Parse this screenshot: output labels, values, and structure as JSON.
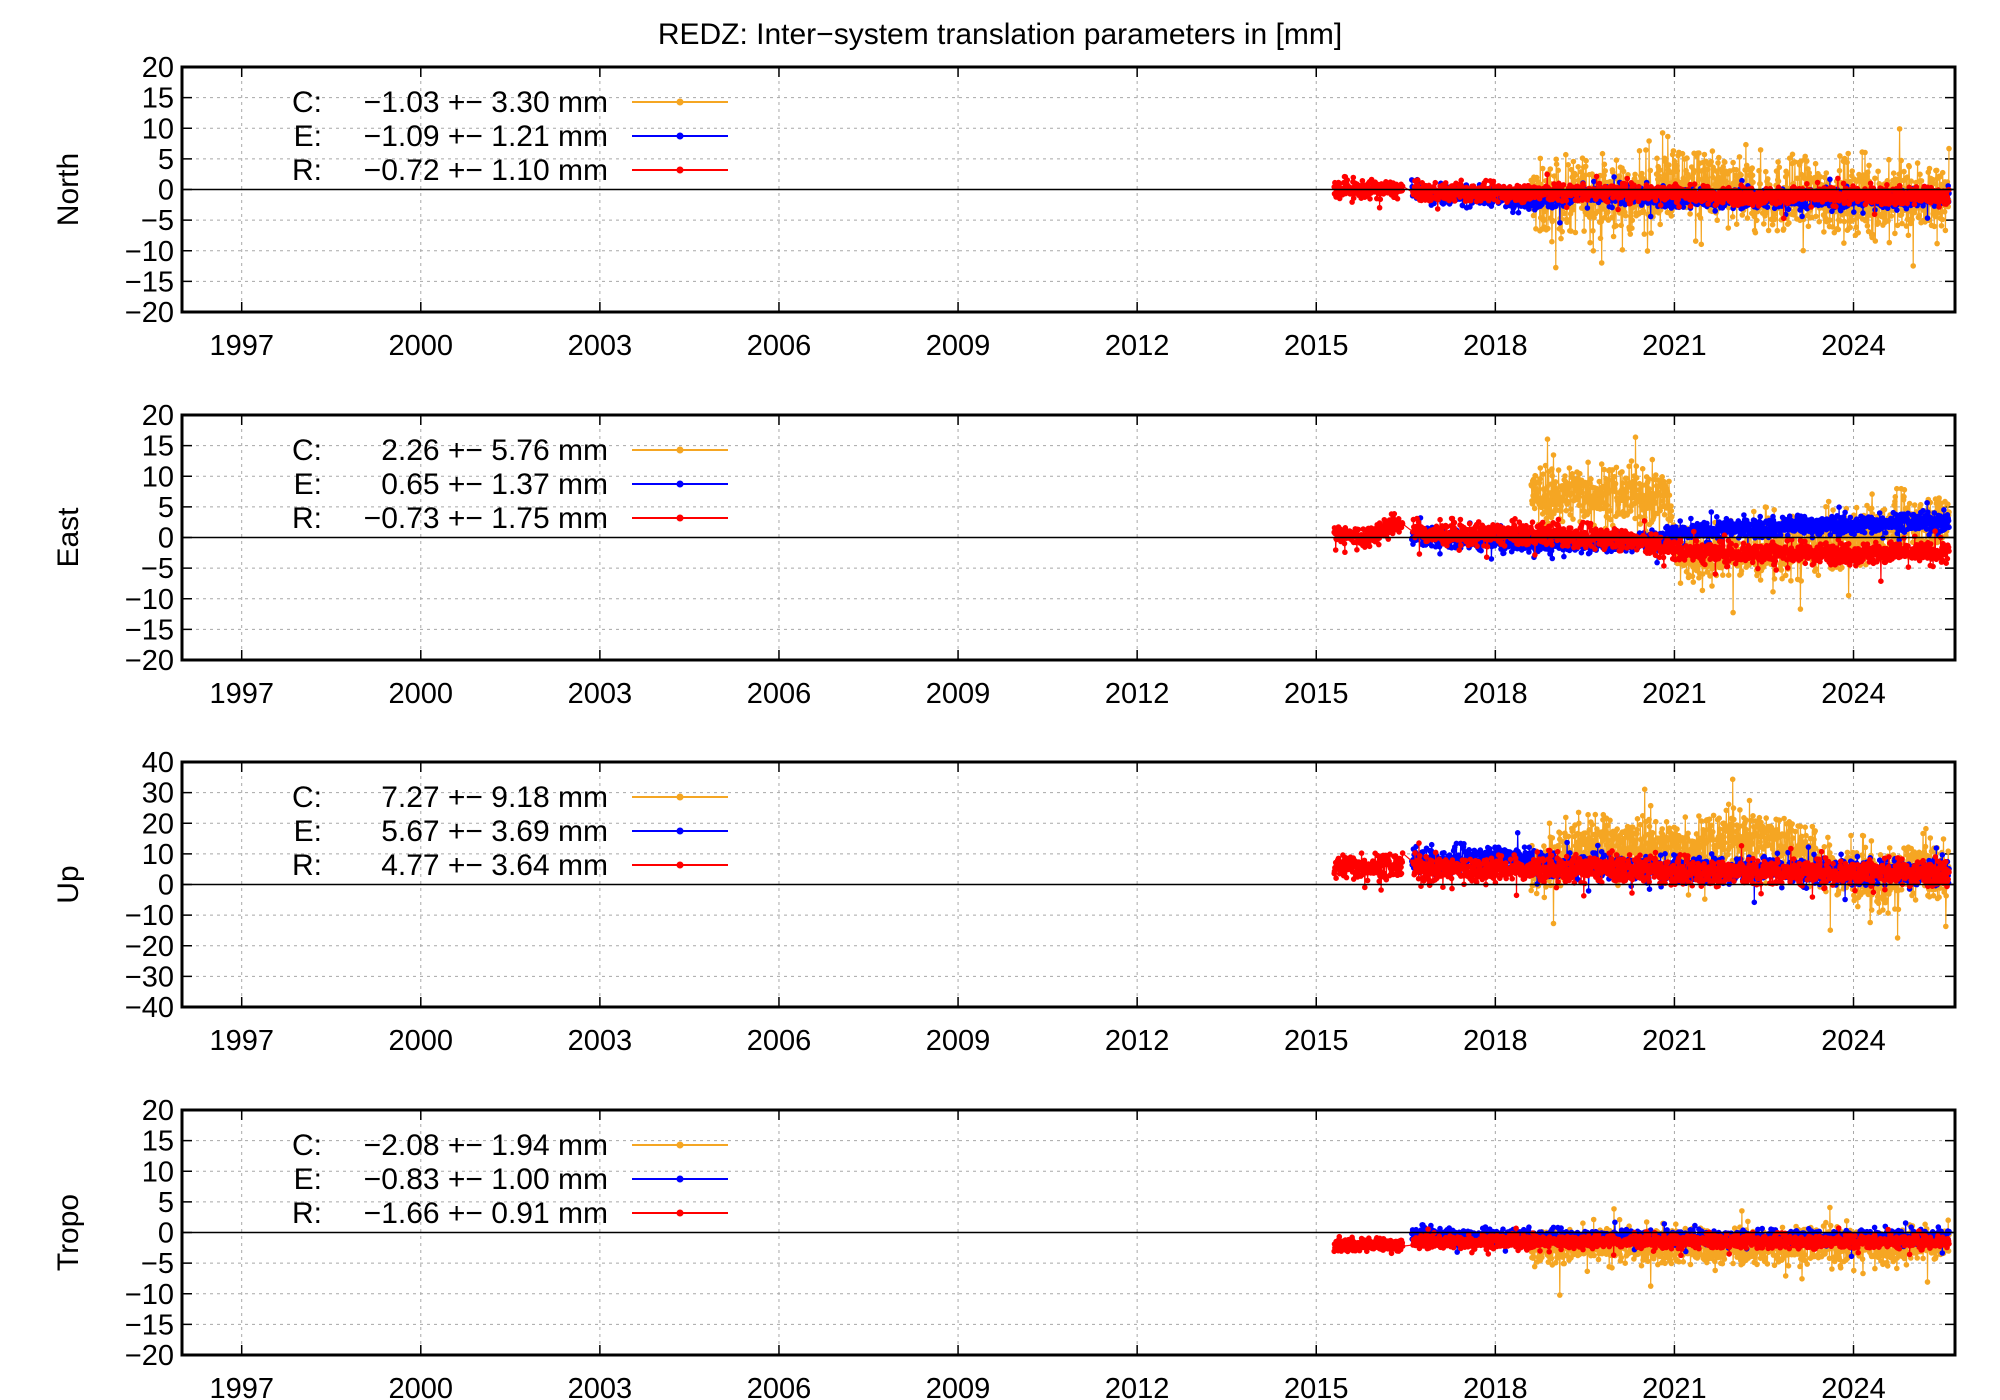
{
  "chart_data": {
    "type": "line",
    "title": "REDZ: Inter−system translation parameters in [mm]",
    "x_ticks": [
      "1997",
      "2000",
      "2003",
      "2006",
      "2009",
      "2012",
      "2015",
      "2018",
      "2021",
      "2024"
    ],
    "x_range": [
      1996,
      2025.7
    ],
    "grid": true,
    "legend_position": "top-left",
    "series_colors": {
      "C": "#f5a623",
      "E": "#0000ff",
      "R": "#ff0000"
    },
    "panels": [
      {
        "ylabel": "North",
        "ylim": [
          -20,
          20
        ],
        "yticks": [
          "20",
          "15",
          "10",
          "5",
          "0",
          "−5",
          "−10",
          "−15",
          "−20"
        ],
        "legend": [
          {
            "key": "C",
            "label": "C:",
            "stat": "−1.03 +− 3.30 mm"
          },
          {
            "key": "E",
            "label": "E:",
            "stat": "−1.09 +− 1.21 mm"
          },
          {
            "key": "R",
            "label": "R:",
            "stat": "−0.72 +− 1.10 mm"
          }
        ],
        "series": [
          {
            "name": "C",
            "start": 2018.6,
            "x": [
              2018.6,
              2019.0,
              2019.5,
              2020.0,
              2020.5,
              2021.0,
              2021.5,
              2022.0,
              2022.5,
              2023.0,
              2023.5,
              2024.0,
              2024.5,
              2025.0,
              2025.6
            ],
            "values": [
              -1.5,
              -2.0,
              -0.5,
              -1.0,
              -1.5,
              1.0,
              0.5,
              -0.5,
              -1.0,
              -1.5,
              -1.0,
              -1.5,
              -2.0,
              -1.5,
              -1.0
            ],
            "spread": 5.0
          },
          {
            "name": "E",
            "start": 2016.6,
            "x": [
              2016.6,
              2017.0,
              2017.5,
              2018.0,
              2018.5,
              2019.0,
              2019.5,
              2020.0,
              2020.5,
              2021.0,
              2021.5,
              2022.0,
              2022.5,
              2023.0,
              2023.5,
              2024.0,
              2024.5,
              2025.0,
              2025.6
            ],
            "values": [
              0.5,
              -1.0,
              -1.0,
              -1.0,
              -1.5,
              -1.5,
              -1.0,
              -1.0,
              -1.0,
              -1.5,
              -1.5,
              -1.5,
              -1.5,
              -1.5,
              -1.5,
              -1.5,
              -1.5,
              -1.5,
              -1.5
            ],
            "spread": 1.3
          },
          {
            "name": "R",
            "start": 2015.3,
            "x": [
              2015.3,
              2015.8,
              2016.3,
              2016.5,
              2016.7,
              2017.0,
              2017.5,
              2018.0,
              2018.5,
              2019.0,
              2019.5,
              2020.0,
              2020.5,
              2021.0,
              2021.5,
              2022.0,
              2022.5,
              2023.0,
              2023.5,
              2024.0,
              2024.5,
              2025.0,
              2025.6
            ],
            "values": [
              0.0,
              0.0,
              0.0,
              0.0,
              -0.5,
              -0.5,
              -0.5,
              -0.5,
              -0.5,
              -0.5,
              -0.5,
              -0.5,
              -0.5,
              -0.5,
              -1.0,
              -1.0,
              -1.0,
              -1.0,
              -1.0,
              -1.0,
              -1.0,
              -1.0,
              -1.0
            ],
            "spread": 1.2
          }
        ]
      },
      {
        "ylabel": "East",
        "ylim": [
          -20,
          20
        ],
        "yticks": [
          "20",
          "15",
          "10",
          "5",
          "0",
          "−5",
          "−10",
          "−15",
          "−20"
        ],
        "legend": [
          {
            "key": "C",
            "label": "C:",
            "stat": "2.26 +− 5.76 mm"
          },
          {
            "key": "E",
            "label": "E:",
            "stat": "0.65 +− 1.37 mm"
          },
          {
            "key": "R",
            "label": "R:",
            "stat": "−0.73 +− 1.75 mm"
          }
        ],
        "series": [
          {
            "name": "C",
            "start": 2018.6,
            "x": [
              2018.6,
              2019.0,
              2019.5,
              2020.0,
              2020.5,
              2020.9,
              2021.0,
              2021.5,
              2022.0,
              2022.5,
              2023.0,
              2023.5,
              2024.0,
              2024.5,
              2025.0,
              2025.6
            ],
            "values": [
              7.0,
              7.0,
              7.5,
              7.0,
              6.5,
              6.5,
              -1.5,
              -3.0,
              -2.5,
              -2.0,
              -2.0,
              -1.0,
              -0.5,
              1.0,
              2.0,
              3.0
            ],
            "spread": 4.0
          },
          {
            "name": "E",
            "start": 2016.6,
            "x": [
              2016.6,
              2017.0,
              2017.5,
              2018.0,
              2018.5,
              2019.0,
              2019.5,
              2020.0,
              2020.5,
              2021.0,
              2021.5,
              2022.0,
              2022.5,
              2023.0,
              2023.5,
              2024.0,
              2024.5,
              2025.0,
              2025.6
            ],
            "values": [
              0.0,
              0.0,
              -0.5,
              -0.5,
              -1.0,
              -1.0,
              -1.0,
              -0.5,
              -0.5,
              0.5,
              1.0,
              1.5,
              1.5,
              2.0,
              2.0,
              2.0,
              2.5,
              2.5,
              2.5
            ],
            "spread": 1.3
          },
          {
            "name": "R",
            "start": 2015.3,
            "x": [
              2015.3,
              2015.8,
              2016.3,
              2016.5,
              2016.7,
              2017.0,
              2017.5,
              2018.0,
              2018.5,
              2019.0,
              2019.5,
              2020.0,
              2020.5,
              2021.0,
              2021.5,
              2022.0,
              2022.5,
              2023.0,
              2023.5,
              2024.0,
              2024.5,
              2025.0,
              2025.6
            ],
            "values": [
              0.5,
              0.0,
              2.0,
              2.5,
              1.0,
              0.5,
              0.5,
              0.5,
              0.5,
              0.5,
              0.0,
              0.0,
              -1.0,
              -2.0,
              -2.5,
              -2.5,
              -2.5,
              -2.5,
              -2.5,
              -2.5,
              -2.5,
              -2.5,
              -2.5
            ],
            "spread": 1.5
          }
        ]
      },
      {
        "ylabel": "Up",
        "ylim": [
          -40,
          40
        ],
        "yticks": [
          "40",
          "30",
          "20",
          "10",
          "0",
          "−10",
          "−20",
          "−30",
          "−40"
        ],
        "legend": [
          {
            "key": "C",
            "label": "C:",
            "stat": "7.27 +− 9.18 mm"
          },
          {
            "key": "E",
            "label": "E:",
            "stat": "5.67 +− 3.69 mm"
          },
          {
            "key": "R",
            "label": "R:",
            "stat": "4.77 +− 3.64 mm"
          }
        ],
        "series": [
          {
            "name": "C",
            "start": 2018.6,
            "x": [
              2018.6,
              2019.0,
              2019.5,
              2020.0,
              2020.5,
              2021.0,
              2021.5,
              2022.0,
              2022.5,
              2023.0,
              2023.5,
              2024.0,
              2024.5,
              2025.0,
              2025.6
            ],
            "values": [
              2.0,
              8.0,
              14.0,
              12.0,
              13.0,
              12.0,
              13.0,
              15.0,
              15.0,
              14.0,
              5.0,
              3.0,
              0.0,
              5.0,
              4.0
            ],
            "spread": 8.0
          },
          {
            "name": "E",
            "start": 2016.6,
            "x": [
              2016.6,
              2017.0,
              2017.5,
              2018.0,
              2018.5,
              2019.0,
              2019.5,
              2020.0,
              2020.5,
              2021.0,
              2021.5,
              2022.0,
              2022.5,
              2023.0,
              2023.5,
              2024.0,
              2024.5,
              2025.0,
              2025.6
            ],
            "values": [
              8.0,
              7.0,
              8.0,
              9.0,
              8.0,
              6.0,
              6.0,
              6.0,
              5.0,
              5.0,
              5.0,
              5.0,
              5.0,
              4.0,
              4.0,
              4.0,
              4.0,
              4.0,
              4.0
            ],
            "spread": 3.5
          },
          {
            "name": "R",
            "start": 2015.3,
            "x": [
              2015.3,
              2015.8,
              2016.3,
              2016.5,
              2016.7,
              2017.0,
              2017.5,
              2018.0,
              2018.5,
              2019.0,
              2019.5,
              2020.0,
              2020.5,
              2021.0,
              2021.5,
              2022.0,
              2022.5,
              2023.0,
              2023.5,
              2024.0,
              2024.5,
              2025.0,
              2025.6
            ],
            "values": [
              6.0,
              6.0,
              6.0,
              6.0,
              5.0,
              5.0,
              5.0,
              5.0,
              5.0,
              5.0,
              5.0,
              5.0,
              5.0,
              4.0,
              4.0,
              4.0,
              4.0,
              4.0,
              4.0,
              4.0,
              4.0,
              4.0,
              4.0
            ],
            "spread": 3.5
          }
        ]
      },
      {
        "ylabel": "Tropo",
        "ylim": [
          -20,
          20
        ],
        "yticks": [
          "20",
          "15",
          "10",
          "5",
          "0",
          "−5",
          "−10",
          "−15",
          "−20"
        ],
        "legend": [
          {
            "key": "C",
            "label": "C:",
            "stat": "−2.08 +− 1.94 mm"
          },
          {
            "key": "E",
            "label": "E:",
            "stat": "−0.83 +− 1.00 mm"
          },
          {
            "key": "R",
            "label": "R:",
            "stat": "−1.66 +− 0.91 mm"
          }
        ],
        "series": [
          {
            "name": "C",
            "start": 2018.6,
            "x": [
              2018.6,
              2019.0,
              2019.5,
              2020.0,
              2020.5,
              2021.0,
              2021.5,
              2022.0,
              2022.5,
              2023.0,
              2023.5,
              2024.0,
              2024.5,
              2025.0,
              2025.6
            ],
            "values": [
              -2.0,
              -2.5,
              -2.5,
              -2.0,
              -2.5,
              -2.0,
              -2.5,
              -2.0,
              -2.5,
              -2.0,
              -2.0,
              -2.0,
              -2.5,
              -2.0,
              -2.0
            ],
            "spread": 2.5
          },
          {
            "name": "E",
            "start": 2016.6,
            "x": [
              2016.6,
              2017.0,
              2017.5,
              2018.0,
              2018.5,
              2019.0,
              2019.5,
              2020.0,
              2020.5,
              2021.0,
              2021.5,
              2022.0,
              2022.5,
              2023.0,
              2023.5,
              2024.0,
              2024.5,
              2025.0,
              2025.6
            ],
            "values": [
              -0.5,
              -0.5,
              -0.8,
              -0.8,
              -0.8,
              -0.8,
              -0.8,
              -0.8,
              -0.8,
              -0.8,
              -0.8,
              -0.8,
              -0.8,
              -0.8,
              -0.8,
              -0.8,
              -0.8,
              -0.8,
              -0.8
            ],
            "spread": 1.0
          },
          {
            "name": "R",
            "start": 2015.3,
            "x": [
              2015.3,
              2015.8,
              2016.3,
              2016.5,
              2016.7,
              2017.0,
              2017.5,
              2018.0,
              2018.5,
              2019.0,
              2019.5,
              2020.0,
              2020.5,
              2021.0,
              2021.5,
              2022.0,
              2022.5,
              2023.0,
              2023.5,
              2024.0,
              2024.5,
              2025.0,
              2025.6
            ],
            "values": [
              -2.0,
              -2.0,
              -2.0,
              -2.0,
              -1.5,
              -1.5,
              -1.5,
              -1.5,
              -1.5,
              -1.5,
              -1.5,
              -1.5,
              -1.5,
              -1.5,
              -1.5,
              -1.5,
              -1.5,
              -1.5,
              -1.5,
              -1.5,
              -1.5,
              -1.5,
              -1.5
            ],
            "spread": 0.9
          }
        ]
      }
    ]
  }
}
